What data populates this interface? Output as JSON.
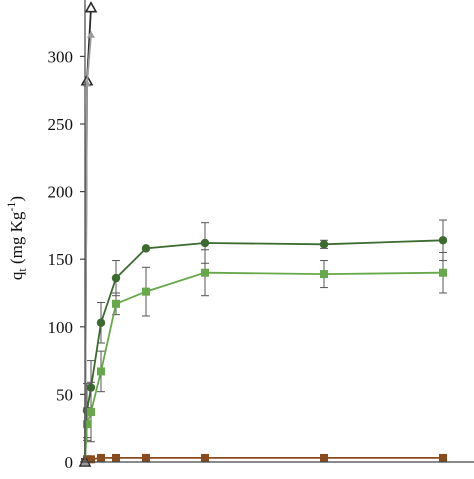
{
  "chart_data": {
    "type": "line",
    "title": "",
    "xlabel": "",
    "ylabel": {
      "base": "q",
      "sub": "t",
      "rest": " (mg Kg",
      "sup": "-1",
      "close": ")"
    },
    "ylim": [
      0,
      340
    ],
    "yticks": [
      {
        "value": 0,
        "label": "0"
      },
      {
        "value": 50,
        "label": "50"
      },
      {
        "value": 100,
        "label": "100"
      },
      {
        "value": 150,
        "label": "150"
      },
      {
        "value": 200,
        "label": "200"
      },
      {
        "value": 250,
        "label": "250"
      },
      {
        "value": 300,
        "label": "300"
      }
    ],
    "x_tick_labels_visible": false,
    "grid": false,
    "series": [
      {
        "color": "#3b6b2f",
        "marker": "circle",
        "points": [
          {
            "x": 0,
            "y": 0
          },
          {
            "x": 1,
            "y": 38,
            "err": 20
          },
          {
            "x": 2,
            "y": 55,
            "err": 20
          },
          {
            "x": 5,
            "y": 103,
            "err": 15
          },
          {
            "x": 10,
            "y": 136,
            "err": 13
          },
          {
            "x": 20,
            "y": 158
          },
          {
            "x": 40,
            "y": 162,
            "err": 15
          },
          {
            "x": 80,
            "y": 161,
            "err": 3
          },
          {
            "x": 120,
            "y": 164,
            "err": 15
          }
        ]
      },
      {
        "color": "#66a84a",
        "marker": "square",
        "points": [
          {
            "x": 0,
            "y": 0
          },
          {
            "x": 1,
            "y": 28,
            "err": 12
          },
          {
            "x": 2,
            "y": 37,
            "err": 22
          },
          {
            "x": 5,
            "y": 67,
            "err": 15
          },
          {
            "x": 10,
            "y": 117,
            "err": 8
          },
          {
            "x": 20,
            "y": 126,
            "err": 18
          },
          {
            "x": 40,
            "y": 140,
            "err": 17
          },
          {
            "x": 80,
            "y": 139,
            "err": 10
          },
          {
            "x": 120,
            "y": 140,
            "err": 15
          }
        ]
      },
      {
        "color": "#8b4a1c",
        "marker": "square",
        "points": [
          {
            "x": 0,
            "y": 0
          },
          {
            "x": 1,
            "y": 2
          },
          {
            "x": 2,
            "y": 2
          },
          {
            "x": 5,
            "y": 3
          },
          {
            "x": 10,
            "y": 3
          },
          {
            "x": 20,
            "y": 3
          },
          {
            "x": 40,
            "y": 3
          },
          {
            "x": 80,
            "y": 3
          },
          {
            "x": 120,
            "y": 3
          }
        ]
      },
      {
        "color": "#2a2a2a",
        "marker": "triangle-open",
        "points": [
          {
            "x": 0,
            "y": 0
          },
          {
            "x": 1,
            "y": 282
          },
          {
            "x": 2,
            "y": 336
          }
        ]
      },
      {
        "color": "#9a9a9a",
        "marker": "triangle",
        "points": [
          {
            "x": 0,
            "y": 0
          },
          {
            "x": 1,
            "y": 280
          },
          {
            "x": 2,
            "y": 316
          }
        ]
      }
    ]
  }
}
